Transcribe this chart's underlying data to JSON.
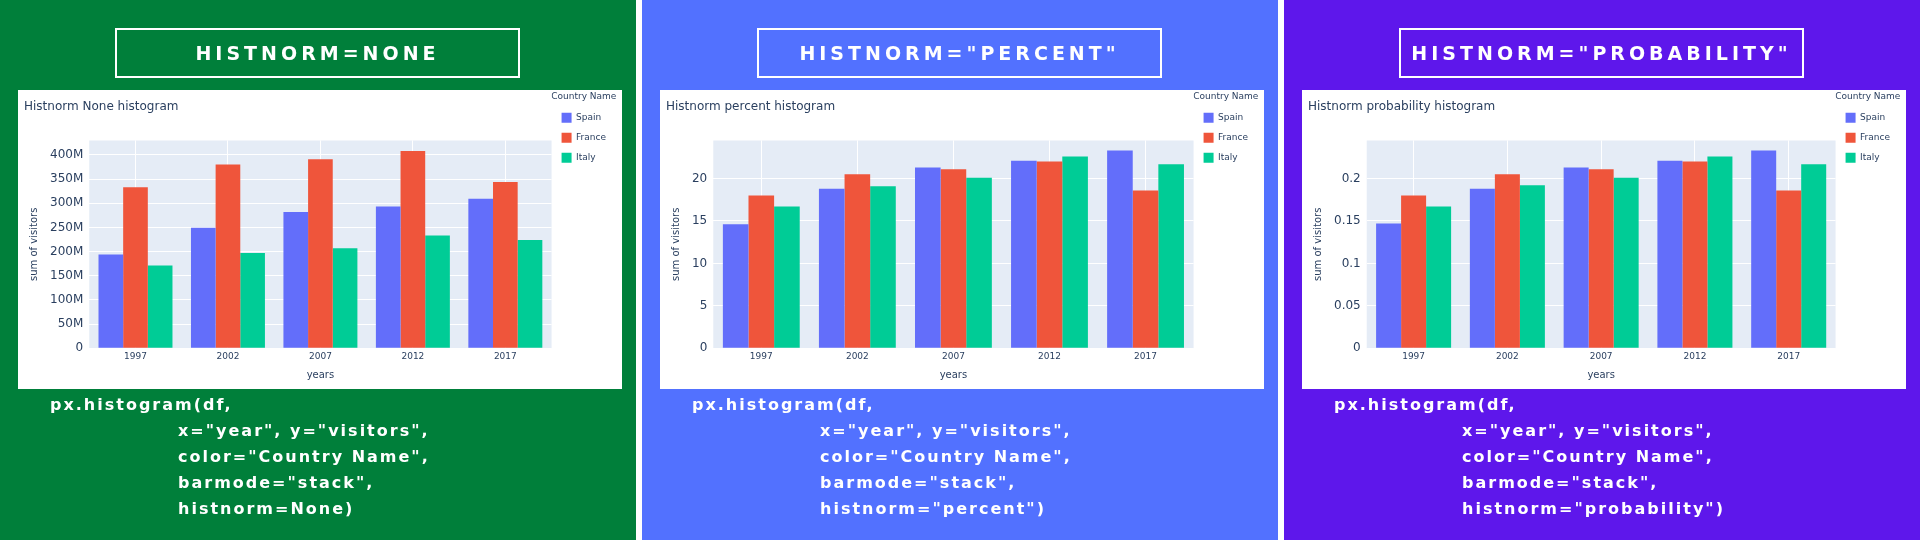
{
  "chart_data": [
    {
      "type": "bar",
      "title": "Histnorm None histogram",
      "xlabel": "years",
      "ylabel": "sum of visitors",
      "legend_title": "Country Name",
      "legend": "right",
      "grid": true,
      "annotations": [
        "HISTNORM=NONE",
        "px.histogram(df,\nx=\"year\", y=\"visitors\",\ncolor=\"Country Name\",\nbarmode=\"stack\",\nhistnorm=None)"
      ],
      "categories": [
        "1997",
        "2002",
        "2007",
        "2012",
        "2017"
      ],
      "ylim": [
        0,
        430000000
      ],
      "yticks": [
        0,
        {
          "value": 50000000,
          "label": "50M"
        },
        {
          "value": 100000000,
          "label": "100M"
        },
        {
          "value": 150000000,
          "label": "150M"
        },
        {
          "value": 200000000,
          "label": "200M"
        },
        {
          "value": 250000000,
          "label": "250M"
        },
        {
          "value": 300000000,
          "label": "300M"
        },
        {
          "value": 350000000,
          "label": "350M"
        },
        {
          "value": 400000000,
          "label": "400M"
        }
      ],
      "series": [
        {
          "name": "Spain",
          "color": "#636efa",
          "values": [
            194000000,
            249000000,
            282000000,
            293000000,
            309000000
          ]
        },
        {
          "name": "France",
          "color": "#ef553b",
          "values": [
            333000000,
            380000000,
            391000000,
            408000000,
            344000000
          ]
        },
        {
          "name": "Italy",
          "color": "#00cc96",
          "values": [
            171000000,
            197000000,
            207000000,
            233000000,
            224000000
          ]
        }
      ]
    },
    {
      "type": "bar",
      "title": "Histnorm percent histogram",
      "xlabel": "years",
      "ylabel": "sum of visitors",
      "legend_title": "Country Name",
      "legend": "right",
      "grid": true,
      "annotations": [
        "HISTNORM=\"PERCENT\"",
        "px.histogram(df,\nx=\"year\", y=\"visitors\",\ncolor=\"Country Name\",\nbarmode=\"stack\",\nhistnorm=\"percent\")"
      ],
      "categories": [
        "1997",
        "2002",
        "2007",
        "2012",
        "2017"
      ],
      "ylim": [
        0,
        24.5
      ],
      "yticks": [
        0,
        5,
        10,
        15,
        20
      ],
      "series": [
        {
          "name": "Spain",
          "color": "#636efa",
          "values": [
            14.6,
            18.8,
            21.3,
            22.1,
            23.3
          ]
        },
        {
          "name": "France",
          "color": "#ef553b",
          "values": [
            18.0,
            20.5,
            21.1,
            22.0,
            18.6
          ]
        },
        {
          "name": "Italy",
          "color": "#00cc96",
          "values": [
            16.7,
            19.1,
            20.1,
            22.6,
            21.7
          ]
        }
      ]
    },
    {
      "type": "bar",
      "title": "Histnorm probability histogram",
      "xlabel": "years",
      "ylabel": "sum of visitors",
      "legend_title": "Country Name",
      "legend": "right",
      "grid": true,
      "annotations": [
        "HISTNORM=\"PROBABILITY\"",
        "px.histogram(df,\nx=\"year\", y=\"visitors\",\ncolor=\"Country Name\",\nbarmode=\"stack\",\nhistnorm=\"probability\")"
      ],
      "categories": [
        "1997",
        "2002",
        "2007",
        "2012",
        "2017"
      ],
      "ylim": [
        0,
        0.245
      ],
      "yticks": [
        0,
        0.05,
        0.1,
        0.15,
        0.2
      ],
      "series": [
        {
          "name": "Spain",
          "color": "#636efa",
          "values": [
            0.147,
            0.188,
            0.213,
            0.221,
            0.233
          ]
        },
        {
          "name": "France",
          "color": "#ef553b",
          "values": [
            0.18,
            0.205,
            0.211,
            0.22,
            0.186
          ]
        },
        {
          "name": "Italy",
          "color": "#00cc96",
          "values": [
            0.167,
            0.192,
            0.201,
            0.226,
            0.217
          ]
        }
      ]
    }
  ]
}
